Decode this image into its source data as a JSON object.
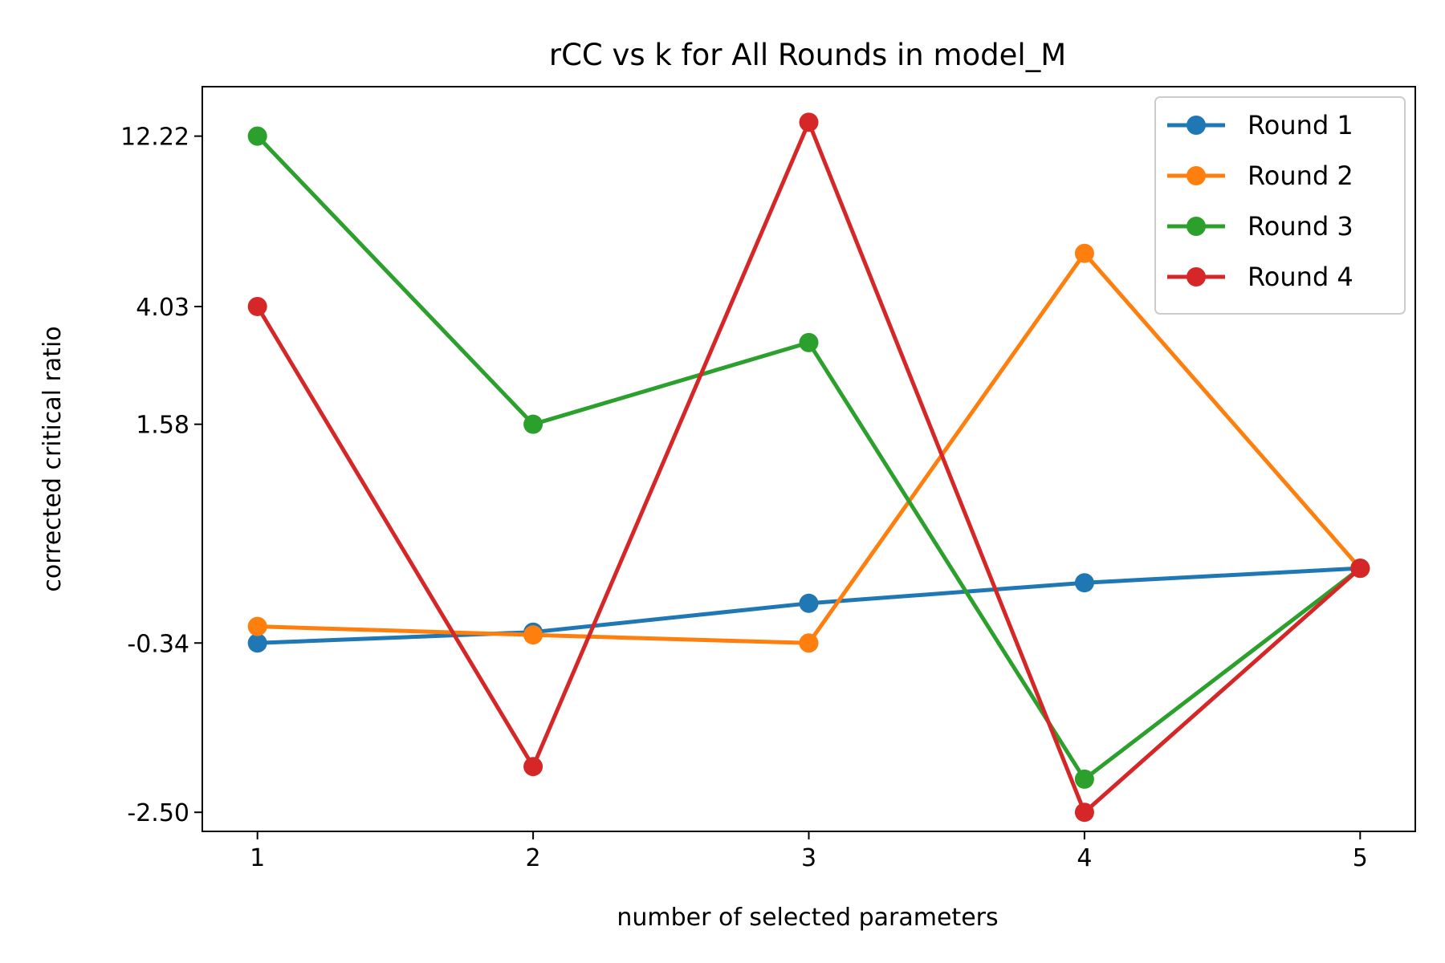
{
  "chart_data": {
    "type": "line",
    "title": "rCC vs k for All Rounds in model_M",
    "xlabel": "number of selected parameters",
    "ylabel": "corrected critical ratio",
    "x": [
      1,
      2,
      3,
      4,
      5
    ],
    "xticks": [
      "1",
      "2",
      "3",
      "4",
      "5"
    ],
    "xlim": [
      0.8,
      5.2
    ],
    "yscale": "symlog",
    "ytick_values": [
      -2.5,
      -0.34,
      1.58,
      4.03,
      12.22
    ],
    "yticks": [
      "-2.50",
      "-0.34",
      "1.58",
      "4.03",
      "12.22"
    ],
    "ylim": [
      -2.9,
      16.5
    ],
    "grid": false,
    "legend_position": "upper right",
    "series": [
      {
        "name": "Round 1",
        "color": "#1f77b4",
        "values": [
          -0.34,
          -0.26,
          -0.07,
          0.05,
          0.14
        ]
      },
      {
        "name": "Round 2",
        "color": "#ff7f0e",
        "values": [
          -0.22,
          -0.28,
          -0.34,
          5.8,
          0.14
        ]
      },
      {
        "name": "Round 3",
        "color": "#2ca02c",
        "values": [
          12.22,
          1.58,
          3.1,
          -1.9,
          0.14
        ]
      },
      {
        "name": "Round 4",
        "color": "#d62728",
        "values": [
          4.03,
          -1.7,
          13.3,
          -2.5,
          0.14
        ]
      }
    ]
  }
}
